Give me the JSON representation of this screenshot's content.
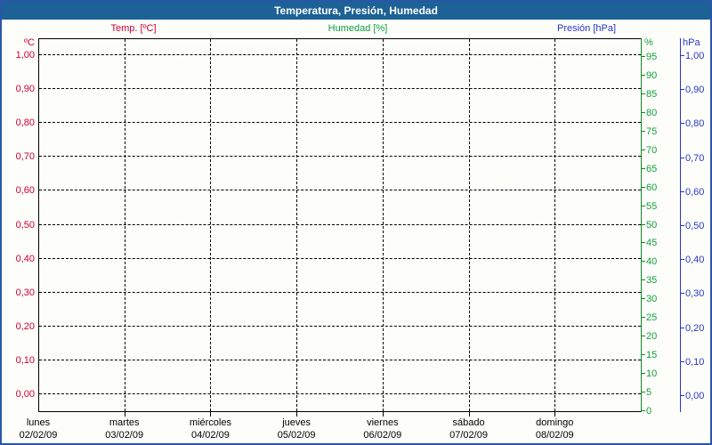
{
  "window": {
    "title": "Temperatura, Presión, Humedad"
  },
  "legend": {
    "temp": {
      "label": "Temp. [ºC]",
      "color": "#cc0033"
    },
    "humidity": {
      "label": "Humedad [%]",
      "color": "#0aa23c"
    },
    "pressure": {
      "label": "Presión [hPa]",
      "color": "#2a35c8"
    }
  },
  "axes": {
    "temperature": {
      "unit": "ºC",
      "color": "#cc0033",
      "ticks": [
        "1,00",
        "0,90",
        "0,80",
        "0,70",
        "0,60",
        "0,50",
        "0,40",
        "0,30",
        "0,20",
        "0,10",
        "0,00"
      ]
    },
    "humidity": {
      "unit": "%",
      "color": "#0fa03c",
      "line_color": "#0e8a28",
      "ticks": [
        "95",
        "90",
        "85",
        "80",
        "75",
        "70",
        "65",
        "60",
        "55",
        "50",
        "45",
        "40",
        "35",
        "30",
        "25",
        "20",
        "15",
        "10",
        "5",
        "0"
      ]
    },
    "pressure": {
      "unit": "hPa",
      "color": "#2a35c8",
      "ticks": [
        "1,00",
        "0,90",
        "0,80",
        "0,70",
        "0,60",
        "0,50",
        "0,40",
        "0,30",
        "0,20",
        "0,10",
        "0,00"
      ]
    }
  },
  "x_axis": {
    "days": [
      "lunes",
      "martes",
      "miércoles",
      "jueves",
      "viernes",
      "sábado",
      "domingo"
    ],
    "dates": [
      "02/02/09",
      "03/02/09",
      "04/02/09",
      "05/02/09",
      "06/02/09",
      "07/02/09",
      "08/02/09"
    ]
  },
  "chart_data": {
    "type": "line",
    "title": "Temperatura, Presión, Humedad",
    "x_categories": [
      "02/02/09",
      "03/02/09",
      "04/02/09",
      "05/02/09",
      "06/02/09",
      "07/02/09",
      "08/02/09"
    ],
    "x_day_names": [
      "lunes",
      "martes",
      "miércoles",
      "jueves",
      "viernes",
      "sábado",
      "domingo"
    ],
    "series": [
      {
        "name": "Temp. [ºC]",
        "axis": "temperature",
        "color": "#cc0033",
        "values": []
      },
      {
        "name": "Humedad [%]",
        "axis": "humidity",
        "color": "#0fa03c",
        "values": []
      },
      {
        "name": "Presión [hPa]",
        "axis": "pressure",
        "color": "#2a35c8",
        "values": []
      }
    ],
    "axes": {
      "temperature": {
        "label": "ºC",
        "min": 0.0,
        "max": 1.0,
        "step": 0.1,
        "side": "left"
      },
      "humidity": {
        "label": "%",
        "min": 0,
        "max": 100,
        "step": 5,
        "side": "right"
      },
      "pressure": {
        "label": "hPa",
        "min": 0.0,
        "max": 1.0,
        "step": 0.1,
        "side": "right"
      }
    },
    "grid": {
      "visible": true,
      "style": "dashed"
    },
    "legend_position": "top"
  }
}
